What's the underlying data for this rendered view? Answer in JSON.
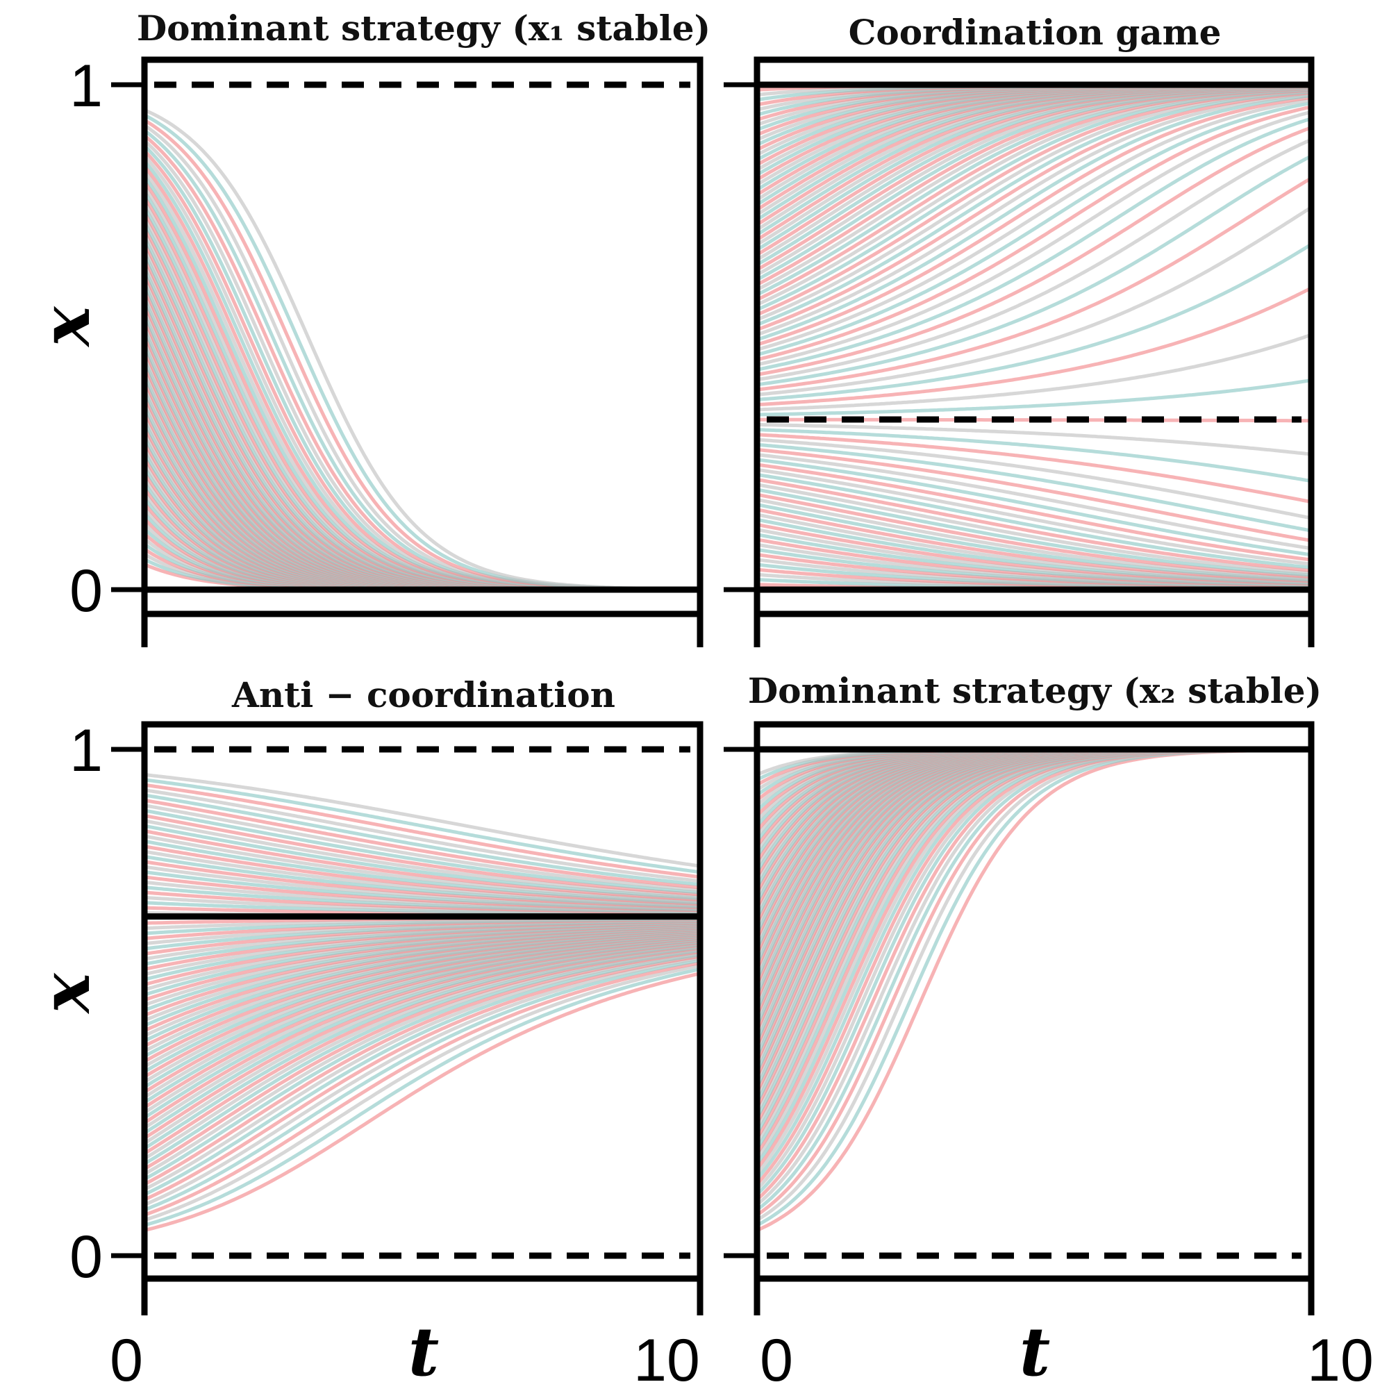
{
  "figure": {
    "xlabel": "t",
    "ylabel": "x"
  },
  "chart_data": [
    {
      "type": "line",
      "title": "Dominant strategy (x₁ stable)",
      "xlim": [
        0,
        10
      ],
      "ylim": [
        0,
        1
      ],
      "x_ticks": [
        "0",
        "10"
      ],
      "y_ticks": [
        "0",
        "1"
      ],
      "trajectory_x0_range": [
        0.05,
        0.95
      ],
      "trajectory_count": 90,
      "trajectory_colors": [
        "#f28b8e",
        "#8ec9c6",
        "#c2c2c2"
      ],
      "equilibria": [
        {
          "value": 1,
          "style": "dashed",
          "stability": "unstable"
        },
        {
          "value": 0,
          "style": "solid",
          "stability": "stable"
        }
      ]
    },
    {
      "type": "line",
      "title": "Coordination game",
      "xlim": [
        0,
        10
      ],
      "ylim": [
        0,
        1
      ],
      "x_ticks": [],
      "y_ticks": [],
      "trajectory_x0_range": [
        0.01,
        0.99
      ],
      "trajectory_count": 100,
      "trajectory_colors": [
        "#f28b8e",
        "#8ec9c6",
        "#c2c2c2"
      ],
      "equilibria": [
        {
          "value": 1,
          "style": "solid",
          "stability": "stable"
        },
        {
          "value": 0.337,
          "style": "dashed",
          "stability": "unstable"
        },
        {
          "value": 0,
          "style": "solid",
          "stability": "stable"
        }
      ]
    },
    {
      "type": "line",
      "title": "Anti − coordination",
      "xlim": [
        0,
        10
      ],
      "ylim": [
        0,
        1
      ],
      "x_ticks": [
        "0",
        "10"
      ],
      "y_ticks": [
        "0",
        "1"
      ],
      "trajectory_x0_range": [
        0.05,
        0.95
      ],
      "trajectory_count": 90,
      "trajectory_colors": [
        "#f28b8e",
        "#8ec9c6",
        "#c2c2c2"
      ],
      "equilibria": [
        {
          "value": 1,
          "style": "dashed",
          "stability": "unstable"
        },
        {
          "value": 0.67,
          "style": "solid",
          "stability": "stable"
        },
        {
          "value": 0,
          "style": "dashed",
          "stability": "unstable"
        }
      ]
    },
    {
      "type": "line",
      "title": "Dominant strategy (x₂ stable)",
      "xlim": [
        0,
        10
      ],
      "ylim": [
        0,
        1
      ],
      "x_ticks": [
        "0",
        "10"
      ],
      "y_ticks": [],
      "trajectory_x0_range": [
        0.05,
        0.95
      ],
      "trajectory_count": 90,
      "trajectory_colors": [
        "#f28b8e",
        "#8ec9c6",
        "#c2c2c2"
      ],
      "equilibria": [
        {
          "value": 1,
          "style": "solid",
          "stability": "stable"
        },
        {
          "value": 0,
          "style": "dashed",
          "stability": "unstable"
        }
      ]
    }
  ]
}
